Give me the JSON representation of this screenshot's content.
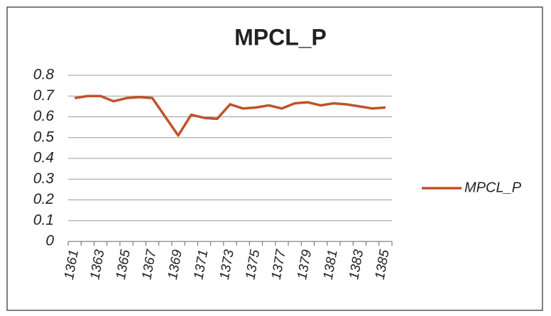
{
  "chart_data": {
    "type": "line",
    "title": "MPCL_P",
    "categories": [
      "1361",
      null,
      "1363",
      null,
      "1365",
      null,
      "1367",
      null,
      "1369",
      null,
      "1371",
      null,
      "1373",
      null,
      "1375",
      null,
      "1377",
      null,
      "1379",
      null,
      "1381",
      null,
      "1383",
      null,
      "1385"
    ],
    "series": [
      {
        "name": "MPCL_P",
        "color": "#c0522a",
        "values": [
          0.69,
          0.7,
          0.7,
          0.675,
          0.69,
          0.695,
          0.69,
          0.6,
          0.51,
          0.61,
          0.595,
          0.59,
          0.66,
          0.64,
          0.645,
          0.655,
          0.64,
          0.665,
          0.67,
          0.655,
          0.665,
          0.66,
          0.65,
          0.64,
          0.645
        ]
      }
    ],
    "ylim": [
      0,
      0.8
    ],
    "yticks": [
      0,
      0.1,
      0.2,
      0.3,
      0.4,
      0.5,
      0.6,
      0.7,
      0.8
    ],
    "grid": true,
    "legend": "right"
  }
}
